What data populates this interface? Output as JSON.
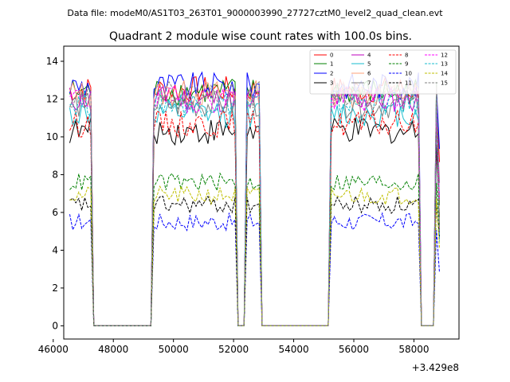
{
  "chart_data": {
    "type": "line",
    "suptitle": "Data file: modeM0/AS1T03_263T01_9000003990_27727cztM0_level2_quad_clean.evt",
    "title": "Quadrant 2 module wise count rates with 100.0s bins.",
    "xlabel": "",
    "ylabel": "",
    "x_offset_label": "+3.429e8",
    "xlim": [
      46350,
      59500
    ],
    "ylim": [
      -0.7,
      14.8
    ],
    "xticks": [
      46000,
      48000,
      50000,
      52000,
      54000,
      56000,
      58000
    ],
    "yticks": [
      0,
      2,
      4,
      6,
      8,
      10,
      12,
      14
    ],
    "legend_position": "upper-right",
    "legend_columns": 4,
    "bin_seconds": 100,
    "gaps": [
      [
        47300,
        49300
      ],
      [
        52100,
        52400
      ],
      [
        52900,
        53500
      ],
      [
        53500,
        55200
      ],
      [
        58200,
        58750
      ]
    ],
    "series": [
      {
        "name": "0",
        "color": "#ff0000",
        "style": "solid",
        "level": 12.5
      },
      {
        "name": "1",
        "color": "#008000",
        "style": "solid",
        "level": 12.4
      },
      {
        "name": "2",
        "color": "#0000ff",
        "style": "solid",
        "level": 12.7
      },
      {
        "name": "3",
        "color": "#000000",
        "style": "solid",
        "level": 10.3
      },
      {
        "name": "4",
        "color": "#bf00bf",
        "style": "solid",
        "level": 12.0
      },
      {
        "name": "5",
        "color": "#17becf",
        "style": "solid",
        "level": 11.2
      },
      {
        "name": "6",
        "color": "#ffa07a",
        "style": "solid",
        "level": 12.3
      },
      {
        "name": "7",
        "color": "#808080",
        "style": "solid",
        "level": 11.7
      },
      {
        "name": "8",
        "color": "#ff0000",
        "style": "dashed",
        "level": 10.7
      },
      {
        "name": "9",
        "color": "#008000",
        "style": "dashed",
        "level": 7.6
      },
      {
        "name": "10",
        "color": "#0000ff",
        "style": "dashed",
        "level": 5.5
      },
      {
        "name": "11",
        "color": "#000000",
        "style": "dashed",
        "level": 6.4
      },
      {
        "name": "12",
        "color": "#ff00ff",
        "style": "dashed",
        "level": 12.0
      },
      {
        "name": "13",
        "color": "#17becf",
        "style": "dashed",
        "level": 11.8
      },
      {
        "name": "14",
        "color": "#bfbf00",
        "style": "dashed",
        "level": 6.9
      },
      {
        "name": "15",
        "color": "#808080",
        "style": "dashed",
        "level": 12.2
      }
    ]
  }
}
